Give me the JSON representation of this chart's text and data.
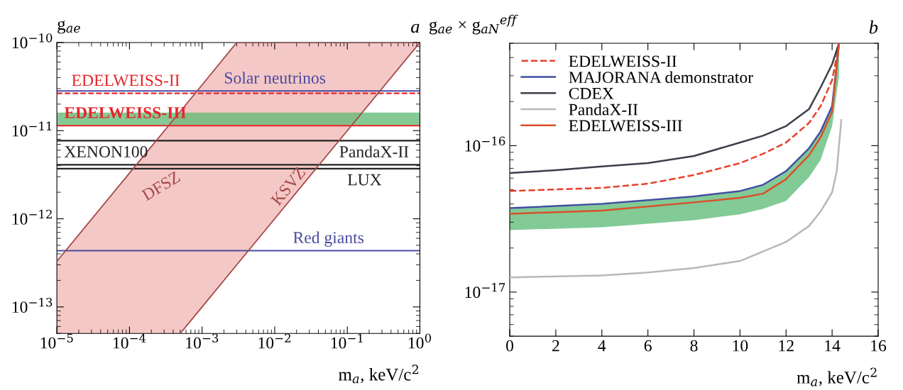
{
  "chart_data": [
    {
      "type": "line",
      "title": "a",
      "ylabel": "g$_{ae}$",
      "xlabel": "m$_{a}$, keV/c$^{2}$",
      "log": "xy",
      "grid": false,
      "legend": false,
      "xlim": [
        1e-05,
        1
      ],
      "ylim": [
        5e-14,
        1e-10
      ],
      "xticks": [
        {
          "value": 1e-05,
          "label": "10$^{−5}$"
        },
        {
          "value": 0.0001,
          "label": "10$^{−4}$"
        },
        {
          "value": 0.001,
          "label": "10$^{−3}$"
        },
        {
          "value": 0.01,
          "label": "10$^{−2}$"
        },
        {
          "value": 0.1,
          "label": "10$^{−1}$"
        },
        {
          "value": 1,
          "label": "10$^{0}$"
        }
      ],
      "yticks": [
        {
          "value": 1e-13,
          "label": "10$^{−13}$"
        },
        {
          "value": 1e-12,
          "label": "10$^{−12}$"
        },
        {
          "value": 1e-11,
          "label": "10$^{−11}$"
        },
        {
          "value": 1e-10,
          "label": "10$^{−10}$"
        }
      ],
      "series": [
        {
          "type": "area",
          "name": "DFSZ",
          "color": "#a5484a",
          "x": [
            1e-05,
            0.0001,
            0.0005,
            0.001,
            0.003,
            1
          ],
          "values": [
            3.3e-13,
            3.3e-12,
            1.65e-11,
            3.3e-11,
            1e-10,
            1e-10
          ]
        },
        {
          "type": "line",
          "name": "KSVZ",
          "color": "#a5484a",
          "x": [
            0.0005,
            0.001,
            0.003,
            0.01,
            0.1,
            1
          ],
          "values": [
            5e-14,
            1e-13,
            3e-13,
            1e-12,
            1e-11,
            1e-10
          ]
        }
      ],
      "bands": [
        {
          "axis": "y",
          "from": 1.14e-11,
          "to": 1.6e-11,
          "color": "#5cb870"
        }
      ],
      "ref_lines": [
        {
          "axis": "y",
          "value": 2.65e-11,
          "label": "EDELWEISS-II",
          "color": "#e8262a",
          "line_style": "dashed"
        },
        {
          "axis": "y",
          "value": 2.82e-11,
          "label": "Solar neutrinos",
          "color": "#4b4ba0",
          "line_style": "solid"
        },
        {
          "axis": "y",
          "value": 1.14e-11,
          "label": "EDELWEISS-III",
          "color": "#e8262a",
          "line_style": "solid"
        },
        {
          "axis": "y",
          "value": 7.7e-12,
          "label": "XENON100",
          "color": "#222222",
          "line_style": "solid"
        },
        {
          "axis": "y",
          "value": 4.1e-12,
          "label": "PandaX-II",
          "color": "#222222",
          "line_style": "solid"
        },
        {
          "axis": "y",
          "value": 3.7e-12,
          "label": "LUX",
          "color": "#222222",
          "line_style": "solid"
        },
        {
          "axis": "y",
          "value": 4.35e-13,
          "label": "Red giants",
          "color": "#4b4ba0",
          "line_style": "solid"
        }
      ]
    },
    {
      "type": "line",
      "title": "b",
      "ylabel": "g$_{ae}$ × g$_{aN}$$^{eff}$",
      "xlabel": "m$_{a}$, keV/c$^{2}$",
      "log": "y",
      "grid": false,
      "legend": "top left",
      "xlim": [
        0,
        16
      ],
      "ylim": [
        5e-18,
        5e-16
      ],
      "xticks": [
        0,
        2,
        4,
        6,
        8,
        10,
        12,
        14,
        16
      ],
      "yticks": [
        {
          "value": 1e-17,
          "label": "10$^{−17}$"
        },
        {
          "value": 1e-16,
          "label": "10$^{−16}$"
        }
      ],
      "series": [
        {
          "name": "EDELWEISS-II",
          "color": "#e8402a",
          "line_style": "dashed",
          "x": [
            0,
            4,
            6,
            8,
            10,
            11,
            12,
            13,
            13.5,
            14,
            14.3
          ],
          "values": [
            4.9e-17,
            5.15e-17,
            5.5e-17,
            6.3e-17,
            7.6e-17,
            8.8e-17,
            1.05e-16,
            1.43e-16,
            1.86e-16,
            2.8e-16,
            4.9e-16
          ]
        },
        {
          "name": "MAJORANA demonstrator",
          "color": "#3f4fa0",
          "line_style": "solid",
          "x": [
            0,
            4,
            8,
            10,
            11,
            12,
            13,
            13.5,
            14,
            14.3
          ],
          "values": [
            3.74e-17,
            4e-17,
            4.5e-17,
            4.9e-17,
            5.4e-17,
            6.7e-17,
            9.6e-17,
            1.25e-16,
            1.86e-16,
            5e-16
          ]
        },
        {
          "name": "CDEX",
          "color": "#3a3f4a",
          "line_style": "solid",
          "x": [
            0,
            2,
            4,
            6,
            8,
            10,
            11,
            12,
            13,
            13.5,
            14,
            14.3
          ],
          "values": [
            6.5e-17,
            6.8e-17,
            7.2e-17,
            7.6e-17,
            8.5e-17,
            1.05e-16,
            1.17e-16,
            1.36e-16,
            1.78e-16,
            2.5e-16,
            3.6e-16,
            5e-16
          ]
        },
        {
          "name": "PandaX-II",
          "color": "#b8b8b8",
          "line_style": "solid",
          "x": [
            0,
            4,
            6,
            8,
            10,
            12,
            13,
            13.5,
            14,
            14.2,
            14.4
          ],
          "values": [
            1.26e-17,
            1.3e-17,
            1.36e-17,
            1.46e-17,
            1.63e-17,
            2.2e-17,
            2.83e-17,
            3.55e-17,
            4.8e-17,
            6.7e-17,
            1.5e-16
          ]
        },
        {
          "name": "EDELWEISS-III",
          "color": "#d9502a",
          "line_style": "solid",
          "x": [
            0,
            4,
            8,
            10,
            11,
            12,
            13,
            13.5,
            14,
            14.3
          ],
          "values": [
            3.43e-17,
            3.6e-17,
            4.1e-17,
            4.4e-17,
            4.7e-17,
            5.9e-17,
            8.6e-17,
            1.14e-16,
            1.7e-16,
            5e-16
          ],
          "lower": [
            2.65e-17,
            2.77e-17,
            3.1e-17,
            3.4e-17,
            3.7e-17,
            4.2e-17,
            6.1e-17,
            8e-17,
            1.36e-16,
            3e-16
          ],
          "upper": [
            3.7e-17,
            3.95e-17,
            4.45e-17,
            4.85e-17,
            5.3e-17,
            6.6e-17,
            9.5e-17,
            1.24e-16,
            1.84e-16,
            5e-16
          ]
        }
      ]
    }
  ]
}
